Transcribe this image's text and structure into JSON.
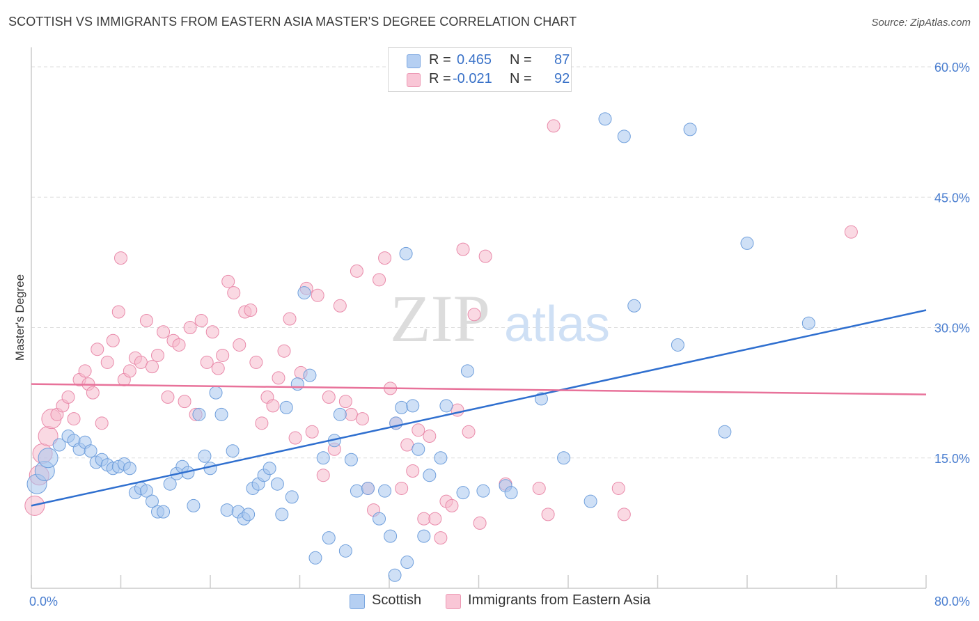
{
  "title": "SCOTTISH VS IMMIGRANTS FROM EASTERN ASIA MASTER'S DEGREE CORRELATION CHART",
  "source": "Source: ZipAtlas.com",
  "watermark": {
    "zip": "ZIP",
    "atlas": "atlas"
  },
  "legend": {
    "rows": [
      {
        "r_label": "R =",
        "r_value": "0.465",
        "n_label": "N =",
        "n_value": "87"
      },
      {
        "r_label": "R =",
        "r_value": "-0.021",
        "n_label": "N =",
        "n_value": "92"
      }
    ]
  },
  "colors": {
    "blue_fill": "#a8c6ee",
    "blue_stroke": "#6f9fdc",
    "blue_line": "#2f6fcf",
    "pink_fill": "#f6b9cc",
    "pink_stroke": "#e98aaa",
    "pink_line": "#e8729a",
    "axis_text": "#4a7ed0",
    "grid": "#dddddd"
  },
  "chart_data": {
    "type": "scatter",
    "title": "SCOTTISH VS IMMIGRANTS FROM EASTERN ASIA MASTER'S DEGREE CORRELATION CHART",
    "xlabel": "",
    "ylabel": "Master's Degree",
    "xlim": [
      0,
      80
    ],
    "ylim": [
      0,
      60
    ],
    "x_tick_labels": [
      "0.0%",
      "80.0%"
    ],
    "y_ticks": [
      15,
      30,
      45,
      60
    ],
    "y_tick_labels": [
      "15.0%",
      "30.0%",
      "45.0%",
      "60.0%"
    ],
    "grid": true,
    "legend_position": "bottom",
    "series": [
      {
        "name": "Scottish",
        "color": "#a8c6ee",
        "trend": {
          "x": [
            0,
            80
          ],
          "y": [
            9.5,
            32.0
          ]
        },
        "points": [
          [
            0.5,
            12.0
          ],
          [
            1.2,
            13.5
          ],
          [
            1.5,
            15.0
          ],
          [
            2.5,
            16.5
          ],
          [
            3.3,
            17.5
          ],
          [
            3.8,
            17.0
          ],
          [
            4.3,
            16.0
          ],
          [
            4.8,
            16.8
          ],
          [
            5.3,
            15.8
          ],
          [
            5.8,
            14.5
          ],
          [
            6.3,
            14.8
          ],
          [
            6.8,
            14.2
          ],
          [
            7.3,
            13.8
          ],
          [
            7.8,
            14.0
          ],
          [
            8.3,
            14.3
          ],
          [
            8.8,
            13.8
          ],
          [
            9.3,
            11.0
          ],
          [
            9.8,
            11.5
          ],
          [
            10.3,
            11.2
          ],
          [
            10.8,
            10.0
          ],
          [
            11.3,
            8.8
          ],
          [
            11.8,
            8.8
          ],
          [
            12.4,
            12.0
          ],
          [
            13.0,
            13.2
          ],
          [
            13.5,
            14.0
          ],
          [
            14.0,
            13.3
          ],
          [
            14.5,
            9.5
          ],
          [
            15.0,
            20.0
          ],
          [
            15.5,
            15.2
          ],
          [
            16.0,
            13.8
          ],
          [
            16.5,
            22.5
          ],
          [
            17.0,
            20.0
          ],
          [
            17.5,
            9.0
          ],
          [
            18.0,
            15.8
          ],
          [
            18.5,
            8.8
          ],
          [
            19.0,
            8.0
          ],
          [
            19.4,
            8.5
          ],
          [
            19.8,
            11.5
          ],
          [
            20.3,
            12.0
          ],
          [
            20.8,
            13.0
          ],
          [
            21.3,
            13.8
          ],
          [
            22.0,
            12.0
          ],
          [
            22.4,
            8.5
          ],
          [
            22.8,
            20.8
          ],
          [
            23.3,
            10.5
          ],
          [
            23.8,
            23.5
          ],
          [
            24.4,
            34.0
          ],
          [
            24.9,
            24.5
          ],
          [
            25.4,
            3.5
          ],
          [
            26.1,
            15.0
          ],
          [
            26.6,
            5.8
          ],
          [
            27.1,
            17.0
          ],
          [
            27.6,
            20.0
          ],
          [
            28.1,
            4.3
          ],
          [
            28.6,
            14.8
          ],
          [
            29.1,
            11.2
          ],
          [
            30.1,
            11.5
          ],
          [
            31.1,
            8.0
          ],
          [
            31.6,
            11.2
          ],
          [
            32.1,
            6.0
          ],
          [
            32.6,
            19.0
          ],
          [
            33.1,
            20.8
          ],
          [
            33.6,
            3.0
          ],
          [
            34.1,
            21.0
          ],
          [
            34.6,
            16.0
          ],
          [
            35.1,
            6.0
          ],
          [
            35.6,
            13.0
          ],
          [
            36.6,
            15.0
          ],
          [
            37.1,
            21.0
          ],
          [
            38.6,
            11.0
          ],
          [
            39.0,
            25.0
          ],
          [
            40.4,
            11.2
          ],
          [
            42.4,
            11.8
          ],
          [
            42.9,
            11.0
          ],
          [
            45.6,
            21.8
          ],
          [
            47.6,
            15.0
          ],
          [
            50.0,
            10.0
          ],
          [
            51.3,
            54.0
          ],
          [
            53.0,
            52.0
          ],
          [
            53.9,
            32.5
          ],
          [
            57.8,
            28.0
          ],
          [
            58.9,
            52.8
          ],
          [
            62.0,
            18.0
          ],
          [
            64.0,
            39.7
          ],
          [
            69.5,
            30.5
          ],
          [
            33.5,
            38.5
          ],
          [
            32.5,
            1.5
          ]
        ]
      },
      {
        "name": "Immigrants from Eastern Asia",
        "color": "#f6b9cc",
        "trend": {
          "x": [
            0,
            80
          ],
          "y": [
            23.5,
            22.3
          ]
        },
        "points": [
          [
            0.3,
            9.5
          ],
          [
            0.7,
            13.0
          ],
          [
            1.0,
            15.5
          ],
          [
            1.5,
            17.5
          ],
          [
            1.8,
            19.5
          ],
          [
            2.3,
            20.0
          ],
          [
            2.8,
            21.0
          ],
          [
            3.3,
            22.0
          ],
          [
            3.8,
            19.5
          ],
          [
            4.3,
            24.0
          ],
          [
            4.8,
            25.0
          ],
          [
            5.1,
            23.5
          ],
          [
            5.5,
            22.5
          ],
          [
            5.9,
            27.5
          ],
          [
            6.3,
            19.0
          ],
          [
            6.8,
            26.0
          ],
          [
            7.3,
            28.5
          ],
          [
            7.8,
            31.8
          ],
          [
            8.3,
            24.0
          ],
          [
            8.8,
            25.0
          ],
          [
            9.3,
            26.5
          ],
          [
            9.8,
            26.0
          ],
          [
            10.3,
            30.8
          ],
          [
            10.8,
            25.5
          ],
          [
            11.3,
            26.8
          ],
          [
            11.8,
            29.5
          ],
          [
            12.2,
            22.0
          ],
          [
            12.7,
            28.5
          ],
          [
            13.2,
            28.0
          ],
          [
            13.7,
            21.5
          ],
          [
            14.2,
            30.0
          ],
          [
            14.7,
            20.0
          ],
          [
            15.2,
            30.8
          ],
          [
            15.7,
            26.0
          ],
          [
            16.2,
            29.5
          ],
          [
            16.7,
            25.3
          ],
          [
            17.1,
            26.8
          ],
          [
            17.6,
            35.3
          ],
          [
            18.1,
            34.0
          ],
          [
            18.6,
            28.0
          ],
          [
            19.1,
            31.8
          ],
          [
            19.6,
            32.0
          ],
          [
            20.1,
            26.0
          ],
          [
            20.6,
            19.0
          ],
          [
            21.1,
            22.0
          ],
          [
            21.6,
            21.0
          ],
          [
            22.1,
            24.2
          ],
          [
            22.6,
            27.3
          ],
          [
            23.1,
            31.0
          ],
          [
            23.6,
            17.3
          ],
          [
            24.1,
            24.8
          ],
          [
            24.6,
            34.5
          ],
          [
            25.1,
            18.0
          ],
          [
            25.6,
            33.7
          ],
          [
            26.1,
            13.0
          ],
          [
            26.6,
            22.0
          ],
          [
            27.1,
            16.0
          ],
          [
            27.6,
            32.5
          ],
          [
            28.1,
            21.5
          ],
          [
            28.6,
            20.0
          ],
          [
            29.1,
            36.5
          ],
          [
            29.6,
            19.5
          ],
          [
            30.1,
            11.5
          ],
          [
            30.6,
            9.0
          ],
          [
            31.1,
            35.5
          ],
          [
            31.6,
            38.0
          ],
          [
            32.1,
            23.0
          ],
          [
            32.6,
            19.0
          ],
          [
            33.1,
            11.5
          ],
          [
            33.6,
            16.5
          ],
          [
            34.1,
            13.5
          ],
          [
            34.6,
            18.2
          ],
          [
            35.1,
            8.0
          ],
          [
            35.6,
            17.5
          ],
          [
            36.1,
            8.0
          ],
          [
            36.6,
            5.8
          ],
          [
            37.1,
            10.0
          ],
          [
            37.6,
            9.5
          ],
          [
            38.1,
            20.5
          ],
          [
            38.6,
            39.0
          ],
          [
            39.1,
            18.0
          ],
          [
            39.6,
            31.5
          ],
          [
            40.1,
            7.5
          ],
          [
            40.6,
            38.2
          ],
          [
            42.4,
            12.0
          ],
          [
            45.4,
            11.5
          ],
          [
            46.2,
            8.5
          ],
          [
            46.7,
            53.2
          ],
          [
            52.5,
            11.5
          ],
          [
            53.0,
            8.5
          ],
          [
            73.3,
            41.0
          ],
          [
            8.0,
            38.0
          ]
        ]
      }
    ]
  },
  "bottom_legend": [
    {
      "label": "Scottish"
    },
    {
      "label": "Immigrants from Eastern Asia"
    }
  ]
}
